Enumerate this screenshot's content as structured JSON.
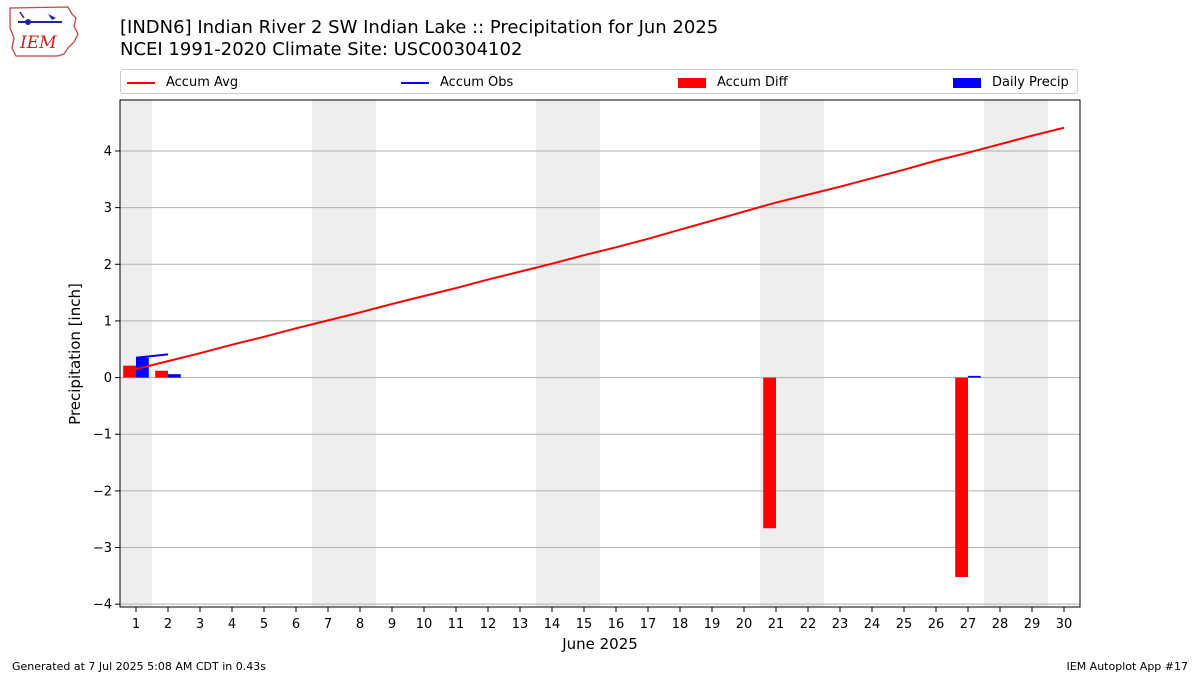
{
  "logo": {
    "text": "IEM"
  },
  "header": {
    "title_line1": "[INDN6] Indian River 2 SW Indian Lake :: Precipitation for Jun 2025",
    "title_line2": "NCEI 1991-2020 Climate Site: USC00304102"
  },
  "legend": [
    {
      "label": "Accum Avg",
      "kind": "line",
      "color": "#ff0000"
    },
    {
      "label": "Accum Obs",
      "kind": "line",
      "color": "#0000ff"
    },
    {
      "label": "Accum Diff",
      "kind": "box",
      "color": "#ff0000"
    },
    {
      "label": "Daily Precip",
      "kind": "box",
      "color": "#0000ff"
    }
  ],
  "footer": {
    "left": "Generated at 7 Jul 2025 5:08 AM CDT in 0.43s",
    "right": "IEM Autoplot App #17"
  },
  "chart_data": {
    "type": "bar",
    "xlabel": "June 2025",
    "ylabel": "Precipitation [inch]",
    "xlim": [
      0.5,
      30.5
    ],
    "ylim": [
      -4.05,
      4.9
    ],
    "yticks": [
      -4,
      -3,
      -2,
      -1,
      0,
      1,
      2,
      3,
      4
    ],
    "ytick_labels": [
      "−4",
      "−3",
      "−2",
      "−1",
      "0",
      "1",
      "2",
      "3",
      "4"
    ],
    "xticks": [
      1,
      2,
      3,
      4,
      5,
      6,
      7,
      8,
      9,
      10,
      11,
      12,
      13,
      14,
      15,
      16,
      17,
      18,
      19,
      20,
      21,
      22,
      23,
      24,
      25,
      26,
      27,
      28,
      29,
      30
    ],
    "grid": "horizontal",
    "weekend_shading": [
      [
        0.5,
        1.5
      ],
      [
        6.5,
        8.5
      ],
      [
        13.5,
        15.5
      ],
      [
        20.5,
        22.5
      ],
      [
        27.5,
        29.5
      ]
    ],
    "series": [
      {
        "name": "Accum Avg",
        "type": "line",
        "color": "#ff0000",
        "x": [
          1,
          2,
          3,
          4,
          5,
          6,
          7,
          8,
          9,
          10,
          11,
          12,
          13,
          14,
          15,
          16,
          17,
          18,
          19,
          20,
          21,
          22,
          23,
          24,
          25,
          26,
          27,
          28,
          29,
          30
        ],
        "values": [
          0.15,
          0.29,
          0.43,
          0.58,
          0.72,
          0.87,
          1.01,
          1.15,
          1.3,
          1.44,
          1.58,
          1.73,
          1.87,
          2.01,
          2.16,
          2.3,
          2.45,
          2.61,
          2.77,
          2.93,
          3.09,
          3.23,
          3.37,
          3.52,
          3.67,
          3.83,
          3.97,
          4.12,
          4.27,
          4.41
        ]
      },
      {
        "name": "Accum Obs",
        "type": "line",
        "color": "#0000ff",
        "x": [
          1,
          2
        ],
        "values": [
          0.35,
          0.41
        ]
      },
      {
        "name": "Accum Diff",
        "type": "bar",
        "color": "#ff0000",
        "offset": -0.2,
        "x": [
          1,
          2,
          21,
          27
        ],
        "values": [
          0.21,
          0.12,
          -2.66,
          -3.52
        ]
      },
      {
        "name": "Daily Precip",
        "type": "bar",
        "color": "#0000ff",
        "offset": 0.2,
        "x": [
          1,
          2,
          27
        ],
        "values": [
          0.35,
          0.06,
          0.03
        ]
      }
    ]
  }
}
